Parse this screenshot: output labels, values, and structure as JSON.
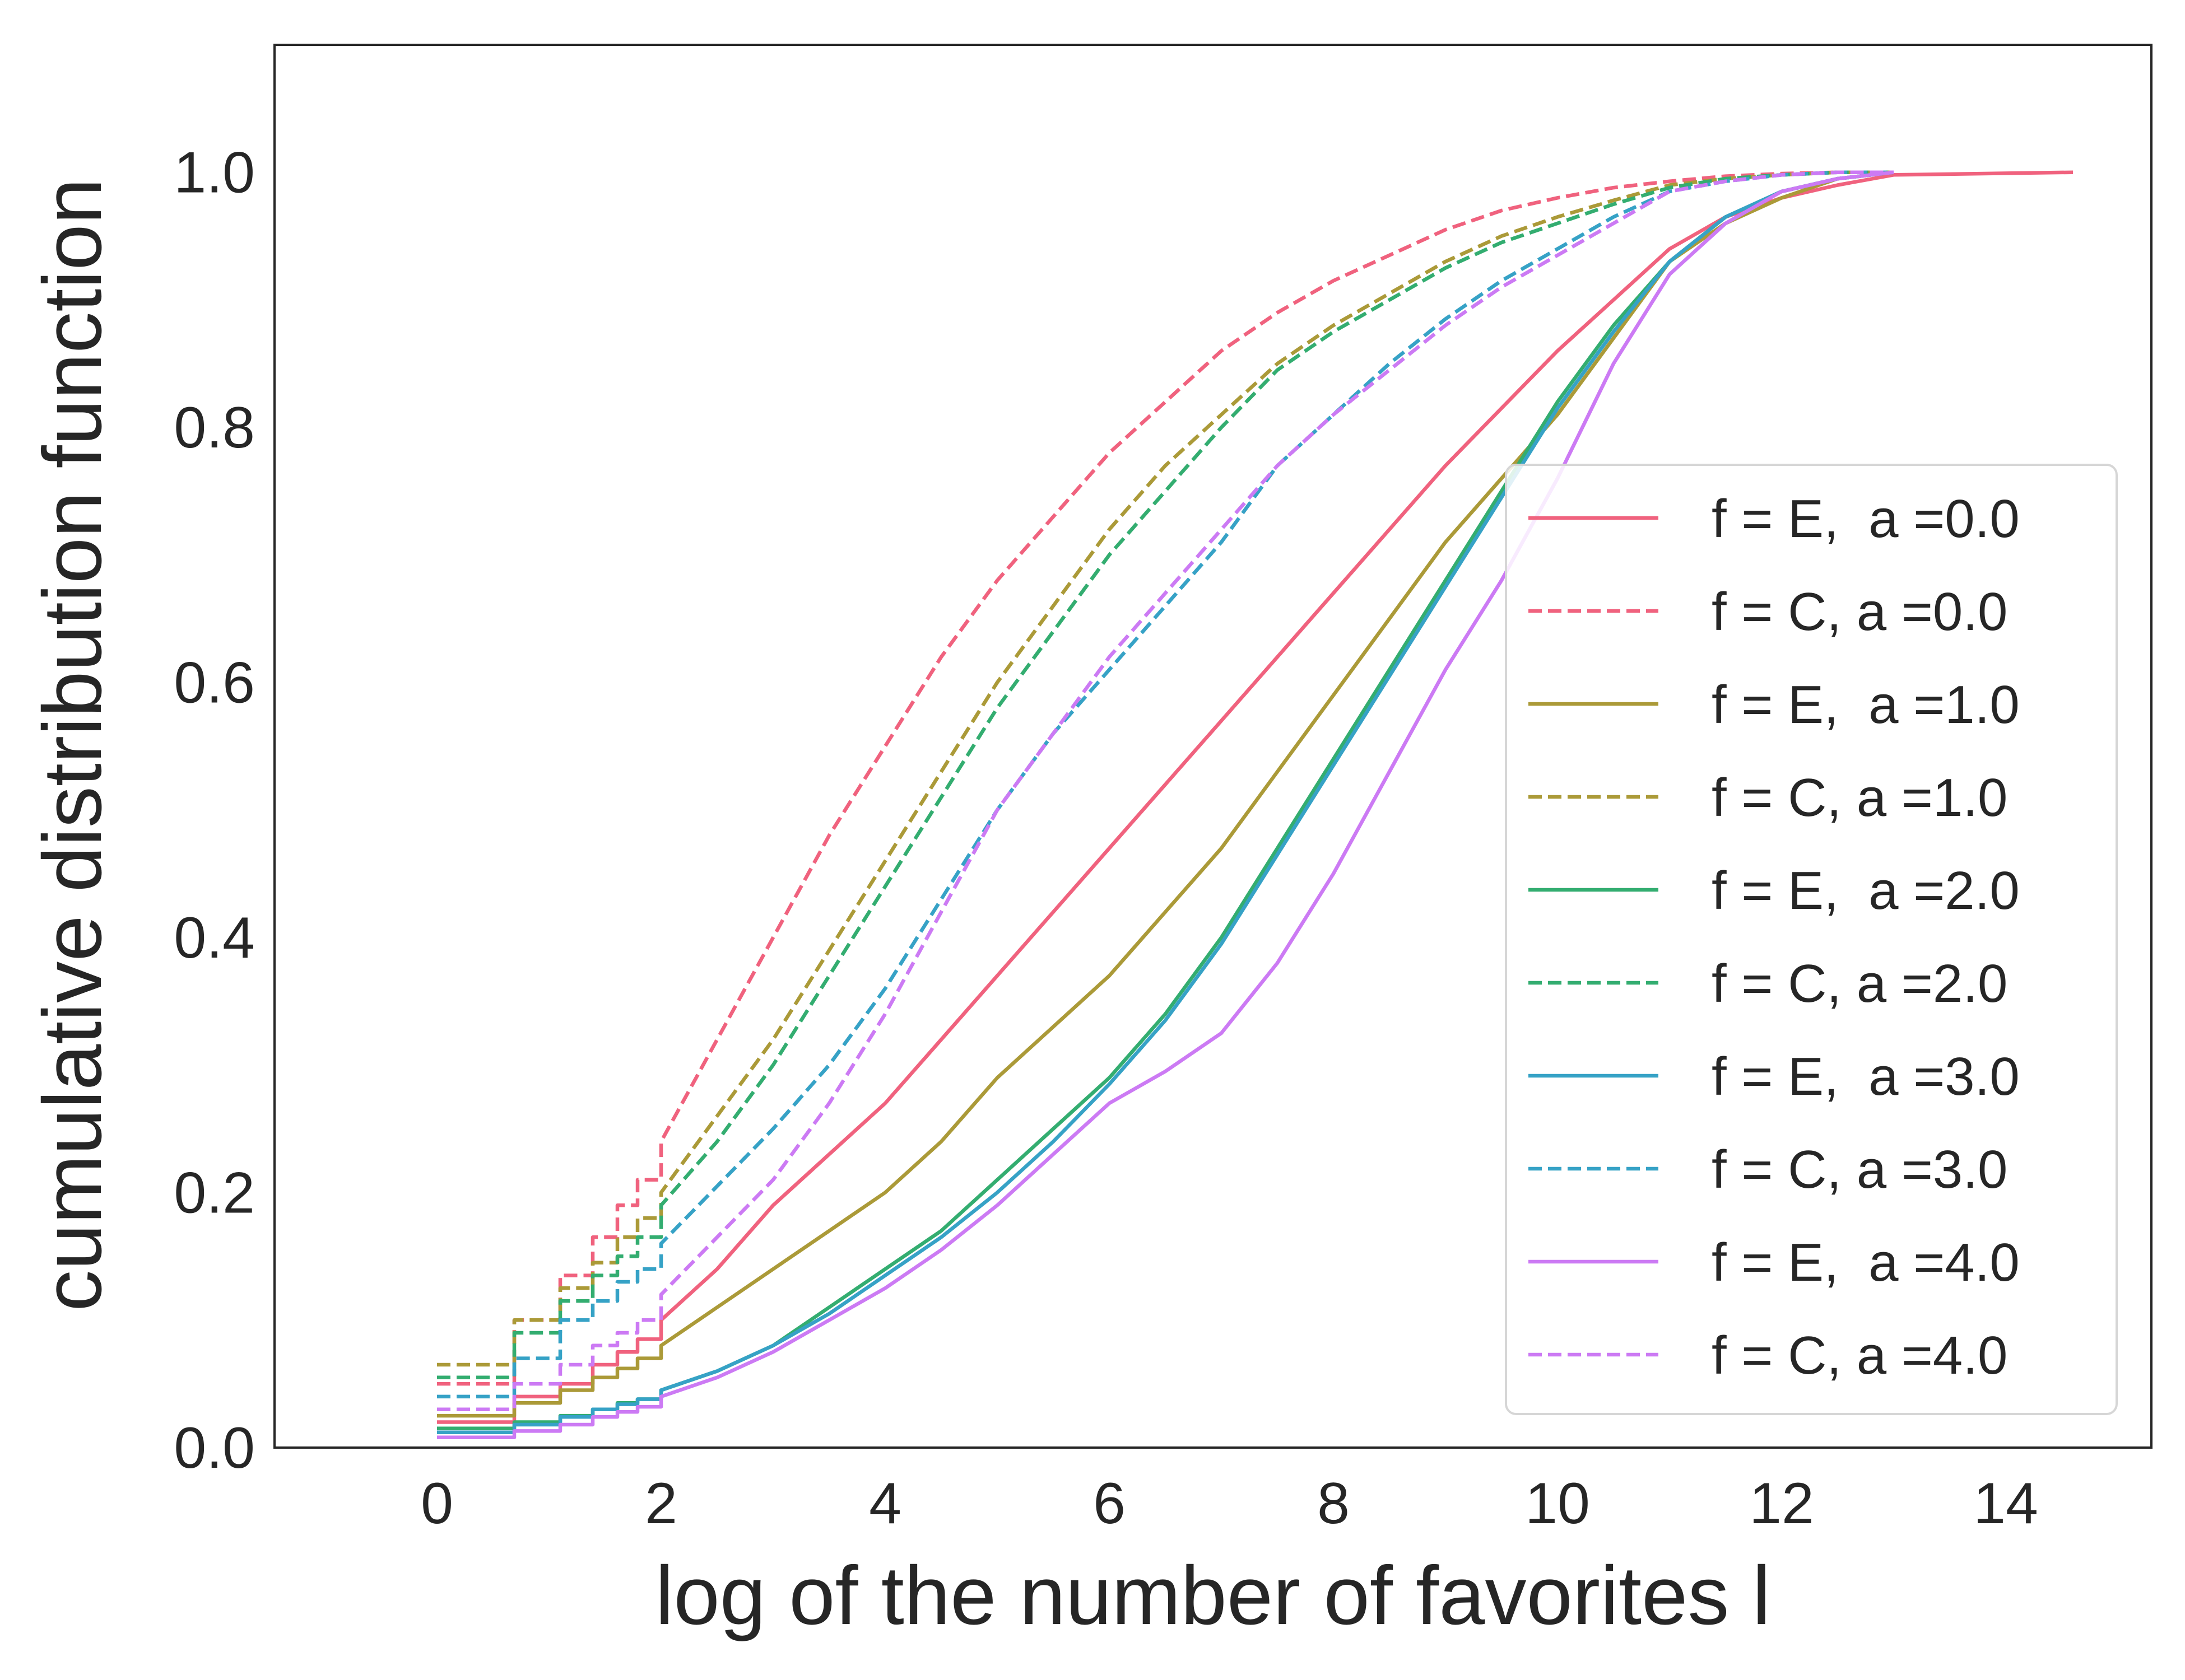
{
  "chart_data": {
    "type": "line",
    "title": "",
    "xlabel": "log of the number of favorites l",
    "ylabel": "cumulative distribution function",
    "xlim": [
      -1.45,
      15.3
    ],
    "ylim": [
      0,
      1.1
    ],
    "xticks": [
      0,
      2,
      4,
      6,
      8,
      10,
      12,
      14
    ],
    "xtick_labels": [
      "0",
      "2",
      "4",
      "6",
      "8",
      "10",
      "12",
      "14"
    ],
    "yticks": [
      0.0,
      0.2,
      0.4,
      0.6,
      0.8,
      1.0
    ],
    "ytick_labels": [
      "0.0",
      "0.2",
      "0.4",
      "0.6",
      "0.8",
      "1.0"
    ],
    "grid": false,
    "legend_position": "lower-right",
    "series": [
      {
        "name": "f = E,  a =0.0",
        "label_prefix": "f = E,  a =",
        "label_value": "0.0",
        "color": "#f0627e",
        "dash": "solid",
        "x": [
          0,
          0.69,
          1.1,
          1.39,
          1.61,
          1.79,
          2,
          2.5,
          3,
          3.5,
          4,
          4.5,
          5,
          5.5,
          6,
          6.5,
          7,
          7.5,
          8,
          8.5,
          9,
          9.5,
          10,
          10.5,
          11,
          11.5,
          12,
          12.5,
          13,
          14.6
        ],
        "y": [
          0.02,
          0.04,
          0.05,
          0.065,
          0.075,
          0.085,
          0.1,
          0.14,
          0.19,
          0.23,
          0.27,
          0.32,
          0.37,
          0.42,
          0.47,
          0.52,
          0.57,
          0.62,
          0.67,
          0.72,
          0.77,
          0.815,
          0.86,
          0.9,
          0.94,
          0.965,
          0.98,
          0.99,
          0.998,
          1.0
        ]
      },
      {
        "name": "f = C, a =0.0",
        "label_prefix": "f = C, a =",
        "label_value": "0.0",
        "color": "#f0627e",
        "dash": "dashed",
        "x": [
          0,
          0.69,
          1.1,
          1.39,
          1.61,
          1.79,
          2,
          2.5,
          3,
          3.5,
          4,
          4.5,
          5,
          5.5,
          6,
          6.5,
          7,
          7.5,
          8,
          8.5,
          9,
          9.5,
          10,
          10.5,
          11,
          11.5,
          12,
          12.5,
          13
        ],
        "y": [
          0.05,
          0.1,
          0.135,
          0.165,
          0.19,
          0.21,
          0.24,
          0.32,
          0.4,
          0.48,
          0.55,
          0.62,
          0.68,
          0.73,
          0.78,
          0.82,
          0.86,
          0.89,
          0.915,
          0.935,
          0.955,
          0.97,
          0.98,
          0.988,
          0.993,
          0.997,
          0.999,
          1.0,
          1.0
        ]
      },
      {
        "name": "f = E,  a =1.0",
        "label_prefix": "f = E,  a =",
        "label_value": "1.0",
        "color": "#ab9a38",
        "dash": "solid",
        "x": [
          0,
          0.69,
          1.1,
          1.39,
          1.61,
          1.79,
          2,
          2.5,
          3,
          3.5,
          4,
          4.5,
          5,
          5.5,
          6,
          6.5,
          7,
          7.5,
          8,
          8.5,
          9,
          9.5,
          10,
          10.5,
          11,
          11.5,
          12,
          12.5,
          13
        ],
        "y": [
          0.025,
          0.035,
          0.045,
          0.055,
          0.062,
          0.07,
          0.08,
          0.11,
          0.14,
          0.17,
          0.2,
          0.24,
          0.29,
          0.33,
          0.37,
          0.42,
          0.47,
          0.53,
          0.59,
          0.65,
          0.71,
          0.76,
          0.81,
          0.87,
          0.93,
          0.96,
          0.98,
          0.995,
          1.0
        ]
      },
      {
        "name": "f = C, a =1.0",
        "label_prefix": "f = C, a =",
        "label_value": "1.0",
        "color": "#ab9a38",
        "dash": "dashed",
        "x": [
          0,
          0.69,
          1.1,
          1.39,
          1.61,
          1.79,
          2,
          2.5,
          3,
          3.5,
          4,
          4.5,
          5,
          5.5,
          6,
          6.5,
          7,
          7.5,
          8,
          8.5,
          9,
          9.5,
          10,
          10.5,
          11,
          11.5,
          12,
          12.5,
          13
        ],
        "y": [
          0.065,
          0.1,
          0.125,
          0.145,
          0.165,
          0.18,
          0.2,
          0.26,
          0.32,
          0.39,
          0.46,
          0.53,
          0.6,
          0.66,
          0.72,
          0.77,
          0.81,
          0.85,
          0.88,
          0.905,
          0.93,
          0.95,
          0.965,
          0.978,
          0.99,
          0.995,
          0.998,
          1.0,
          1.0
        ]
      },
      {
        "name": "f = E,  a =2.0",
        "label_prefix": "f = E,  a =",
        "label_value": "2.0",
        "color": "#33ad70",
        "dash": "solid",
        "x": [
          0,
          0.69,
          1.1,
          1.39,
          1.61,
          1.79,
          2,
          2.5,
          3,
          3.5,
          4,
          4.5,
          5,
          5.5,
          6,
          6.5,
          7,
          7.5,
          8,
          8.5,
          9,
          9.5,
          10,
          10.5,
          11,
          11.5,
          12,
          12.5,
          13
        ],
        "y": [
          0.015,
          0.02,
          0.025,
          0.03,
          0.035,
          0.038,
          0.045,
          0.06,
          0.08,
          0.11,
          0.14,
          0.17,
          0.21,
          0.25,
          0.29,
          0.34,
          0.4,
          0.47,
          0.54,
          0.61,
          0.68,
          0.75,
          0.82,
          0.88,
          0.93,
          0.965,
          0.985,
          0.995,
          1.0
        ]
      },
      {
        "name": "f = C, a =2.0",
        "label_prefix": "f = C, a =",
        "label_value": "2.0",
        "color": "#33ad70",
        "dash": "dashed",
        "x": [
          0,
          0.69,
          1.1,
          1.39,
          1.61,
          1.79,
          2,
          2.5,
          3,
          3.5,
          4,
          4.5,
          5,
          5.5,
          6,
          6.5,
          7,
          7.5,
          8,
          8.5,
          9,
          9.5,
          10,
          10.5,
          11,
          11.5,
          12,
          12.5,
          13
        ],
        "y": [
          0.055,
          0.09,
          0.115,
          0.135,
          0.15,
          0.165,
          0.19,
          0.24,
          0.3,
          0.37,
          0.44,
          0.51,
          0.58,
          0.64,
          0.7,
          0.75,
          0.8,
          0.845,
          0.875,
          0.9,
          0.925,
          0.945,
          0.96,
          0.975,
          0.988,
          0.995,
          0.998,
          1.0,
          1.0
        ]
      },
      {
        "name": "f = E,  a =3.0",
        "label_prefix": "f = E,  a =",
        "label_value": "3.0",
        "color": "#36a2c6",
        "dash": "solid",
        "x": [
          0,
          0.69,
          1.1,
          1.39,
          1.61,
          1.79,
          2,
          2.5,
          3,
          3.5,
          4,
          4.5,
          5,
          5.5,
          6,
          6.5,
          7,
          7.5,
          8,
          8.5,
          9,
          9.5,
          10,
          10.5,
          11,
          11.5,
          12,
          12.5,
          13
        ],
        "y": [
          0.012,
          0.018,
          0.024,
          0.03,
          0.034,
          0.038,
          0.045,
          0.06,
          0.08,
          0.105,
          0.135,
          0.165,
          0.2,
          0.24,
          0.285,
          0.335,
          0.395,
          0.465,
          0.535,
          0.605,
          0.675,
          0.745,
          0.815,
          0.875,
          0.93,
          0.965,
          0.985,
          0.995,
          1.0
        ]
      },
      {
        "name": "f = C, a =3.0",
        "label_prefix": "f = C, a =",
        "label_value": "3.0",
        "color": "#36a2c6",
        "dash": "dashed",
        "x": [
          0,
          0.69,
          1.1,
          1.39,
          1.61,
          1.79,
          2,
          2.5,
          3,
          3.5,
          4,
          4.5,
          5,
          5.5,
          6,
          6.5,
          7,
          7.5,
          8,
          8.5,
          9,
          9.5,
          10,
          10.5,
          11,
          11.5,
          12,
          12.5,
          13
        ],
        "y": [
          0.04,
          0.07,
          0.1,
          0.115,
          0.13,
          0.14,
          0.16,
          0.205,
          0.25,
          0.3,
          0.36,
          0.43,
          0.5,
          0.56,
          0.61,
          0.66,
          0.71,
          0.77,
          0.81,
          0.85,
          0.885,
          0.915,
          0.94,
          0.965,
          0.985,
          0.993,
          0.998,
          1.0,
          1.0
        ]
      },
      {
        "name": "f = E,  a =4.0",
        "label_prefix": "f = E,  a =",
        "label_value": "4.0",
        "color": "#cc7af4",
        "dash": "solid",
        "x": [
          0,
          0.69,
          1.1,
          1.39,
          1.61,
          1.79,
          2,
          2.5,
          3,
          3.5,
          4,
          4.5,
          5,
          5.5,
          6,
          6.5,
          7,
          7.5,
          8,
          8.5,
          9,
          9.5,
          10,
          10.5,
          11,
          11.5,
          12,
          12.5,
          13
        ],
        "y": [
          0.008,
          0.013,
          0.018,
          0.024,
          0.028,
          0.032,
          0.04,
          0.055,
          0.075,
          0.1,
          0.125,
          0.155,
          0.19,
          0.23,
          0.27,
          0.295,
          0.325,
          0.38,
          0.45,
          0.53,
          0.61,
          0.68,
          0.76,
          0.85,
          0.92,
          0.96,
          0.985,
          0.995,
          1.0
        ]
      },
      {
        "name": "f = C, a =4.0",
        "label_prefix": "f = C, a =",
        "label_value": "4.0",
        "color": "#cc7af4",
        "dash": "dashed",
        "x": [
          0,
          0.69,
          1.1,
          1.39,
          1.61,
          1.79,
          2,
          2.5,
          3,
          3.5,
          4,
          4.5,
          5,
          5.5,
          6,
          6.5,
          7,
          7.5,
          8,
          8.5,
          9,
          9.5,
          10,
          10.5,
          11,
          11.5,
          12,
          12.5,
          13
        ],
        "y": [
          0.03,
          0.05,
          0.065,
          0.08,
          0.09,
          0.1,
          0.12,
          0.165,
          0.21,
          0.27,
          0.34,
          0.42,
          0.5,
          0.56,
          0.62,
          0.67,
          0.72,
          0.77,
          0.81,
          0.845,
          0.88,
          0.91,
          0.935,
          0.96,
          0.985,
          0.993,
          0.998,
          1.0,
          1.0
        ]
      }
    ]
  }
}
